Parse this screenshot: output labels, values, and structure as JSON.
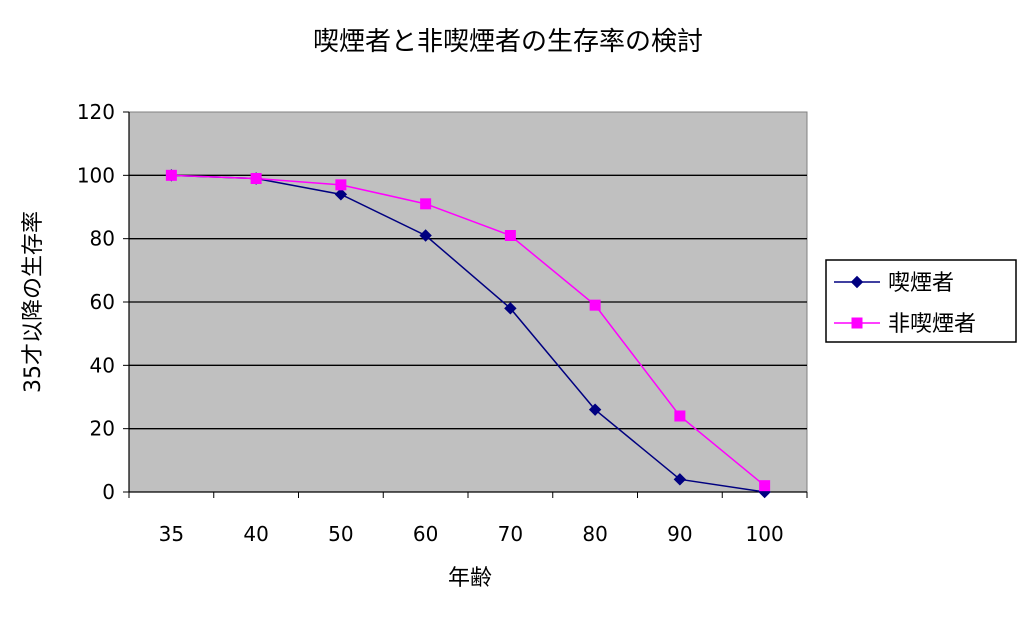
{
  "chart_data": {
    "type": "line",
    "title": "喫煙者と非喫煙者の生存率の検討",
    "xlabel": "年齢",
    "ylabel": "35才以降の生存率",
    "categories": [
      "35",
      "40",
      "50",
      "60",
      "70",
      "80",
      "90",
      "100"
    ],
    "ylim": [
      0,
      120
    ],
    "yticks": [
      "0",
      "20",
      "40",
      "60",
      "80",
      "100",
      "120"
    ],
    "grid": true,
    "legend_position": "right",
    "plot_background": "#c0c0c0",
    "series": [
      {
        "name": "喫煙者",
        "color": "#000080",
        "marker": "diamond",
        "values": [
          100,
          99,
          94,
          81,
          58,
          26,
          4,
          0
        ]
      },
      {
        "name": "非喫煙者",
        "color": "#ff00ff",
        "marker": "square",
        "values": [
          100,
          99,
          97,
          91,
          81,
          59,
          24,
          2
        ]
      }
    ]
  }
}
